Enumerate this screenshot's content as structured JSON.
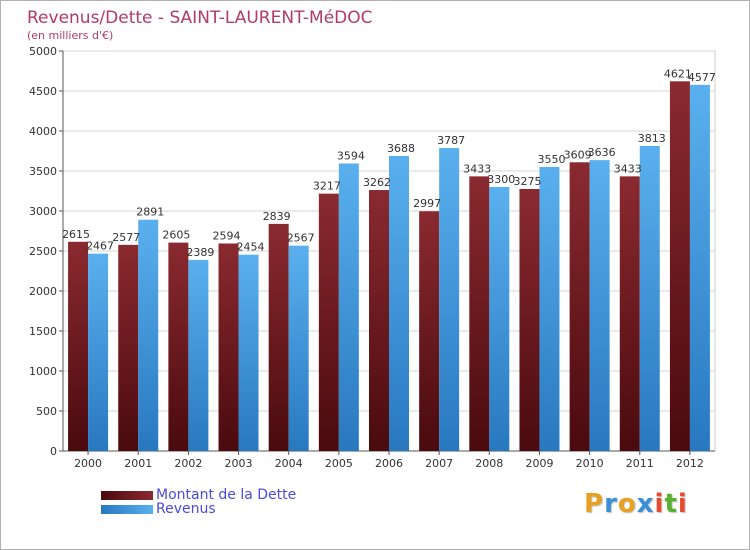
{
  "chart_data": {
    "type": "bar",
    "title": "Revenus/Dette - SAINT-LAURENT-MéDOC",
    "subtitle": "(en milliers d'€)",
    "xlabel": "",
    "ylabel": "",
    "categories": [
      "2000",
      "2001",
      "2002",
      "2003",
      "2004",
      "2005",
      "2006",
      "2007",
      "2008",
      "2009",
      "2010",
      "2011",
      "2012"
    ],
    "series": [
      {
        "name": "Montant de la Dette",
        "color": "#7a1e24",
        "values": [
          2615,
          2577,
          2605,
          2594,
          2839,
          3217,
          3262,
          2997,
          3433,
          3275,
          3609,
          3433,
          4621
        ]
      },
      {
        "name": "Revenus",
        "color": "#4aa3e6",
        "values": [
          2467,
          2891,
          2389,
          2454,
          2567,
          3594,
          3688,
          3787,
          3300,
          3550,
          3636,
          3813,
          4577
        ]
      }
    ],
    "data_labels": [
      [
        "2615",
        "2577",
        "2605",
        "2594",
        "2839",
        "3217",
        "3262",
        "2997",
        "3433",
        "3275",
        "3609",
        "3433",
        "4621"
      ],
      [
        "2467",
        "2891",
        "2389",
        "2454",
        "2567",
        "3594",
        "3688",
        "3787",
        "3300",
        "3550",
        "3636",
        "3813",
        "4577"
      ]
    ],
    "ylim": [
      0,
      5000
    ],
    "yticks": [
      0,
      500,
      1000,
      1500,
      2000,
      2500,
      3000,
      3500,
      4000,
      4500,
      5000
    ],
    "grid": true,
    "legend_position": "bottom-left"
  },
  "legend": {
    "items": [
      "Montant de la Dette",
      "Revenus"
    ]
  },
  "logo": {
    "letters": [
      "P",
      "r",
      "o",
      "x",
      "i",
      "t",
      "i"
    ],
    "colors": [
      "#e8a020",
      "#3a8fd8",
      "#e8a020",
      "#3a8fd8",
      "#e84a30",
      "#58b030",
      "#e84a30"
    ]
  },
  "colors": {
    "title": "#b23a6a",
    "axis_text": "#333333",
    "grid": "#d6d6d6"
  }
}
